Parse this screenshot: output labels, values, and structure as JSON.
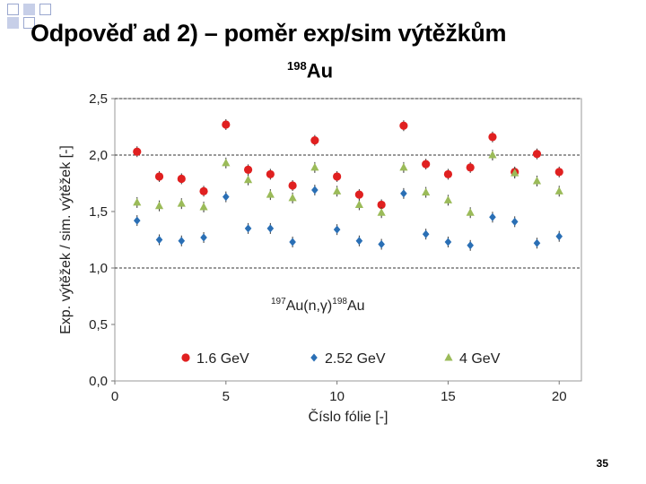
{
  "slide": {
    "title": "Odpověď ad 2) – poměr exp/sim výtěžkům",
    "subtitle_sup": "198",
    "subtitle_main": "Au",
    "page_number": "35"
  },
  "chart_data": {
    "type": "scatter",
    "xlabel": "Číslo fólie [-]",
    "ylabel": "Exp. výtěžek / sim. výtěžek [-]",
    "xlim": [
      0,
      21
    ],
    "ylim": [
      0,
      2.5
    ],
    "xticks": [
      0,
      5,
      10,
      15,
      20
    ],
    "yticks": [
      "0,0",
      "0,5",
      "1,0",
      "1,5",
      "2,0",
      "2,5"
    ],
    "ytick_values": [
      0,
      0.5,
      1.0,
      1.5,
      2.0,
      2.5
    ],
    "reference_lines": [
      1.0,
      2.0,
      2.5
    ],
    "annotation": {
      "sup1": "197",
      "mid": "Au(n,γ)",
      "sup2": "198",
      "end": "Au"
    },
    "legend_position": "inside-bottom",
    "series": [
      {
        "name": "1.6 GeV",
        "color": "#e02020",
        "marker": "circle",
        "x": [
          1,
          2,
          3,
          4,
          5,
          6,
          7,
          8,
          9,
          10,
          11,
          12,
          13,
          14,
          15,
          16,
          17,
          18,
          19,
          20
        ],
        "y": [
          2.03,
          1.81,
          1.79,
          1.68,
          2.27,
          1.87,
          1.83,
          1.73,
          2.13,
          1.81,
          1.65,
          1.56,
          2.26,
          1.92,
          1.83,
          1.89,
          2.16,
          1.85,
          2.01,
          1.85
        ]
      },
      {
        "name": "2.52 GeV",
        "color": "#2a6fb5",
        "marker": "diamond",
        "x": [
          1,
          2,
          3,
          4,
          5,
          6,
          7,
          8,
          9,
          10,
          11,
          12,
          13,
          14,
          15,
          16,
          17,
          18,
          19,
          20
        ],
        "y": [
          1.42,
          1.25,
          1.24,
          1.27,
          1.63,
          1.35,
          1.35,
          1.23,
          1.69,
          1.34,
          1.24,
          1.21,
          1.66,
          1.3,
          1.23,
          1.2,
          1.45,
          1.41,
          1.22,
          1.28
        ]
      },
      {
        "name": "4 GeV",
        "color": "#9bbb59",
        "marker": "triangle",
        "x": [
          1,
          2,
          3,
          4,
          5,
          6,
          7,
          8,
          9,
          10,
          11,
          12,
          13,
          14,
          15,
          16,
          17,
          18,
          19,
          20
        ],
        "y": [
          1.58,
          1.55,
          1.57,
          1.54,
          1.93,
          1.78,
          1.65,
          1.62,
          1.89,
          1.68,
          1.56,
          1.49,
          1.89,
          1.67,
          1.6,
          1.49,
          2.0,
          1.84,
          1.77,
          1.68
        ]
      }
    ]
  }
}
